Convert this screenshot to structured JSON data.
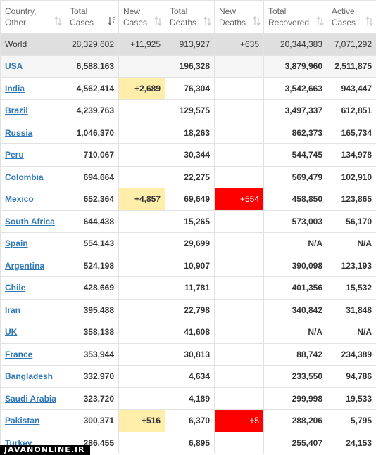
{
  "headers": [
    {
      "line1": "Country,",
      "line2": "Other",
      "icon": "sort-both-icon"
    },
    {
      "line1": "Total",
      "line2": "Cases",
      "icon": "sort-desc-icon"
    },
    {
      "line1": "New",
      "line2": "Cases",
      "icon": "sort-both-icon"
    },
    {
      "line1": "Total",
      "line2": "Deaths",
      "icon": "sort-both-icon"
    },
    {
      "line1": "New",
      "line2": "Deaths",
      "icon": "sort-both-icon"
    },
    {
      "line1": "Total",
      "line2": "Recovered",
      "icon": "sort-both-icon"
    },
    {
      "line1": "Active",
      "line2": "Cases",
      "icon": "sort-both-icon"
    }
  ],
  "world": {
    "country": "World",
    "total_cases": "28,329,602",
    "new_cases": "+11,925",
    "total_deaths": "913,927",
    "new_deaths": "+635",
    "total_recovered": "20,344,383",
    "active_cases": "7,071,292"
  },
  "rows": [
    {
      "country": "USA",
      "total_cases": "6,588,163",
      "new_cases": "",
      "total_deaths": "196,328",
      "new_deaths": "",
      "total_recovered": "3,879,960",
      "active_cases": "2,511,875"
    },
    {
      "country": "India",
      "total_cases": "4,562,414",
      "new_cases": "+2,689",
      "total_deaths": "76,304",
      "new_deaths": "",
      "total_recovered": "3,542,663",
      "active_cases": "943,447"
    },
    {
      "country": "Brazil",
      "total_cases": "4,239,763",
      "new_cases": "",
      "total_deaths": "129,575",
      "new_deaths": "",
      "total_recovered": "3,497,337",
      "active_cases": "612,851"
    },
    {
      "country": "Russia",
      "total_cases": "1,046,370",
      "new_cases": "",
      "total_deaths": "18,263",
      "new_deaths": "",
      "total_recovered": "862,373",
      "active_cases": "165,734"
    },
    {
      "country": "Peru",
      "total_cases": "710,067",
      "new_cases": "",
      "total_deaths": "30,344",
      "new_deaths": "",
      "total_recovered": "544,745",
      "active_cases": "134,978"
    },
    {
      "country": "Colombia",
      "total_cases": "694,664",
      "new_cases": "",
      "total_deaths": "22,275",
      "new_deaths": "",
      "total_recovered": "569,479",
      "active_cases": "102,910"
    },
    {
      "country": "Mexico",
      "total_cases": "652,364",
      "new_cases": "+4,857",
      "total_deaths": "69,649",
      "new_deaths": "+554",
      "total_recovered": "458,850",
      "active_cases": "123,865"
    },
    {
      "country": "South Africa",
      "total_cases": "644,438",
      "new_cases": "",
      "total_deaths": "15,265",
      "new_deaths": "",
      "total_recovered": "573,003",
      "active_cases": "56,170"
    },
    {
      "country": "Spain",
      "total_cases": "554,143",
      "new_cases": "",
      "total_deaths": "29,699",
      "new_deaths": "",
      "total_recovered": "N/A",
      "active_cases": "N/A"
    },
    {
      "country": "Argentina",
      "total_cases": "524,198",
      "new_cases": "",
      "total_deaths": "10,907",
      "new_deaths": "",
      "total_recovered": "390,098",
      "active_cases": "123,193"
    },
    {
      "country": "Chile",
      "total_cases": "428,669",
      "new_cases": "",
      "total_deaths": "11,781",
      "new_deaths": "",
      "total_recovered": "401,356",
      "active_cases": "15,532"
    },
    {
      "country": "Iran",
      "total_cases": "395,488",
      "new_cases": "",
      "total_deaths": "22,798",
      "new_deaths": "",
      "total_recovered": "340,842",
      "active_cases": "31,848"
    },
    {
      "country": "UK",
      "total_cases": "358,138",
      "new_cases": "",
      "total_deaths": "41,608",
      "new_deaths": "",
      "total_recovered": "N/A",
      "active_cases": "N/A"
    },
    {
      "country": "France",
      "total_cases": "353,944",
      "new_cases": "",
      "total_deaths": "30,813",
      "new_deaths": "",
      "total_recovered": "88,742",
      "active_cases": "234,389"
    },
    {
      "country": "Bangladesh",
      "total_cases": "332,970",
      "new_cases": "",
      "total_deaths": "4,634",
      "new_deaths": "",
      "total_recovered": "233,550",
      "active_cases": "94,786"
    },
    {
      "country": "Saudi Arabia",
      "total_cases": "323,720",
      "new_cases": "",
      "total_deaths": "4,189",
      "new_deaths": "",
      "total_recovered": "299,998",
      "active_cases": "19,533"
    },
    {
      "country": "Pakistan",
      "total_cases": "300,371",
      "new_cases": "+516",
      "total_deaths": "6,370",
      "new_deaths": "+5",
      "total_recovered": "288,206",
      "active_cases": "5,795"
    },
    {
      "country": "Turkey",
      "total_cases": "286,455",
      "new_cases": "",
      "total_deaths": "6,895",
      "new_deaths": "",
      "total_recovered": "255,407",
      "active_cases": "24,153"
    }
  ],
  "colors": {
    "new_cases_highlight": "#ffeeaa",
    "new_deaths_highlight": "#ff0000",
    "link": "#3179b6",
    "world_row_bg": "#dfdfdf"
  },
  "watermark": "JAVANONLINE.IR"
}
